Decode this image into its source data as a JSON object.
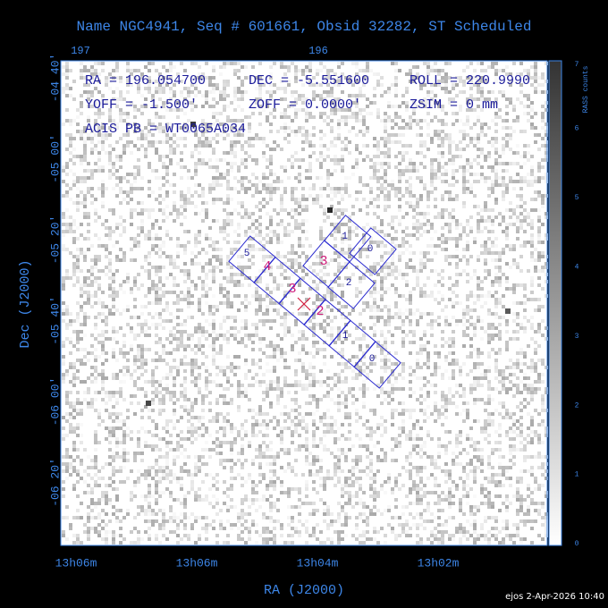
{
  "title": "Name NGC4941, Seq # 601661, Obsid 32282, ST Scheduled",
  "top_axis": {
    "labels": [
      "197",
      "196"
    ]
  },
  "info": [
    [
      "RA = 196.054700",
      "DEC = -5.551600",
      "ROLL = 220.9990"
    ],
    [
      "YOFF =  -1.500'",
      "ZOFF =  0.0000'",
      "ZSIM = 0 mm"
    ],
    [
      "ACIS PB = WT0065A034"
    ]
  ],
  "left_axis": {
    "title": "Dec (J2000)",
    "labels": [
      "-04 40'",
      "-05 00'",
      "-05 20'",
      "-05 40'",
      "-06 00'",
      "-06 20'"
    ]
  },
  "bottom_axis": {
    "title": "RA (J2000)",
    "labels": [
      "13h06m",
      "13h06m",
      "13h04m",
      "13h02m"
    ]
  },
  "colorbar": {
    "label": "RASS counts",
    "ticks": [
      "0",
      "1",
      "2",
      "3",
      "4",
      "5",
      "6",
      "7"
    ]
  },
  "chips": {
    "acis_s": [
      "5",
      "4",
      "3",
      "2",
      "1",
      "0"
    ],
    "acis_i": [
      "1",
      "0",
      "3",
      "2"
    ]
  },
  "footer": "ejos  2-Apr-2026 10:40"
}
